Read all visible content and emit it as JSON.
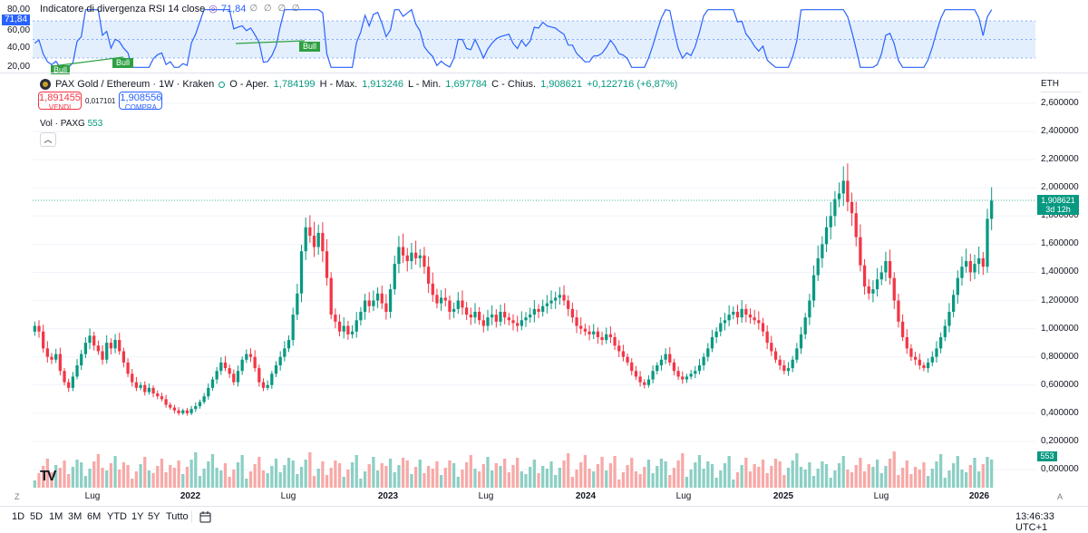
{
  "rsi": {
    "title": "Indicatore di divergenza RSI 14 close",
    "value": "71,84",
    "dots": "∅ ∅ ∅ ∅",
    "axis": [
      "80,00",
      "60,00",
      "40,00",
      "20,00"
    ],
    "tag": "71,84",
    "bull_labels": [
      "Bull",
      "Bull",
      "Bull"
    ],
    "line_color": "#2962ff"
  },
  "legend": {
    "symbol": "PAX Gold / Ethereum · 1W · Kraken",
    "o_label": "O - Aper.",
    "o_val": "1,784199",
    "h_label": "H - Max.",
    "h_val": "1,913246",
    "l_label": "L - Min.",
    "l_val": "1,697784",
    "c_label": "C - Chius.",
    "c_val": "1,908621",
    "change": "+0,122716 (+6,87%)"
  },
  "trade": {
    "sell_price": "1,891455",
    "sell_label": "VENDI",
    "spread": "0,017101",
    "buy_price": "1,908556",
    "buy_label": "COMPRA"
  },
  "volume": {
    "label": "Vol · PAXG",
    "value": "553",
    "tag": "553"
  },
  "collapse_icon": "chevron-up-icon",
  "currency": "ETH",
  "price_axis": [
    "2,600000",
    "2,400000",
    "2,200000",
    "2,000000",
    "1,800000",
    "1,600000",
    "1,400000",
    "1,200000",
    "1,000000",
    "0,800000",
    "0,600000",
    "0,400000",
    "0,200000",
    "0,000000"
  ],
  "price_tag": {
    "price": "1,908621",
    "countdown": "3d 12h"
  },
  "time_axis": [
    {
      "label": "Lug",
      "bold": false
    },
    {
      "label": "2022",
      "bold": true
    },
    {
      "label": "Lug",
      "bold": false
    },
    {
      "label": "2023",
      "bold": true
    },
    {
      "label": "Lug",
      "bold": false
    },
    {
      "label": "2024",
      "bold": true
    },
    {
      "label": "Lug",
      "bold": false
    },
    {
      "label": "2025",
      "bold": true
    },
    {
      "label": "Lug",
      "bold": false
    },
    {
      "label": "2026",
      "bold": true
    }
  ],
  "axis_buttons": {
    "zoom": "Z",
    "auto": "A"
  },
  "timeframes": [
    "1D",
    "5D",
    "1M",
    "3M",
    "6M",
    "YTD",
    "1Y",
    "5Y",
    "Tutto"
  ],
  "clock": "13:46:33 UTC+1",
  "logo": "TV",
  "colors": {
    "up": "#089981",
    "down": "#f23645",
    "rsi": "#2962ff",
    "band": "#e3effd"
  },
  "chart_data": {
    "type": "candlestick",
    "ylim": [
      0,
      2.6
    ],
    "last_close": 1.908621,
    "closes": [
      1.02,
      0.98,
      0.86,
      0.8,
      0.78,
      0.82,
      0.7,
      0.62,
      0.58,
      0.66,
      0.74,
      0.82,
      0.9,
      0.95,
      0.88,
      0.84,
      0.78,
      0.9,
      0.86,
      0.92,
      0.84,
      0.76,
      0.68,
      0.62,
      0.58,
      0.6,
      0.55,
      0.58,
      0.54,
      0.52,
      0.5,
      0.46,
      0.44,
      0.42,
      0.4,
      0.42,
      0.4,
      0.43,
      0.45,
      0.48,
      0.52,
      0.58,
      0.64,
      0.7,
      0.76,
      0.72,
      0.68,
      0.62,
      0.7,
      0.78,
      0.82,
      0.8,
      0.72,
      0.62,
      0.58,
      0.6,
      0.68,
      0.74,
      0.8,
      0.86,
      0.92,
      1.1,
      1.25,
      1.55,
      1.72,
      1.66,
      1.58,
      1.68,
      1.55,
      1.36,
      1.1,
      1.05,
      0.98,
      1.02,
      0.96,
      0.98,
      1.06,
      1.12,
      1.2,
      1.16,
      1.2,
      1.25,
      1.18,
      1.12,
      1.28,
      1.46,
      1.58,
      1.52,
      1.48,
      1.54,
      1.5,
      1.52,
      1.44,
      1.32,
      1.24,
      1.18,
      1.22,
      1.2,
      1.12,
      1.14,
      1.2,
      1.15,
      1.1,
      1.08,
      1.12,
      1.06,
      1.02,
      1.08,
      1.1,
      1.05,
      1.12,
      1.08,
      1.06,
      1.04,
      1.02,
      1.06,
      1.08,
      1.1,
      1.14,
      1.12,
      1.16,
      1.18,
      1.2,
      1.22,
      1.24,
      1.2,
      1.14,
      1.08,
      1.02,
      1.0,
      0.98,
      0.96,
      0.98,
      0.94,
      0.92,
      0.96,
      0.94,
      0.88,
      0.84,
      0.8,
      0.76,
      0.7,
      0.66,
      0.62,
      0.6,
      0.64,
      0.7,
      0.74,
      0.78,
      0.82,
      0.76,
      0.7,
      0.66,
      0.64,
      0.66,
      0.68,
      0.7,
      0.74,
      0.8,
      0.86,
      0.94,
      0.98,
      1.04,
      1.06,
      1.1,
      1.12,
      1.08,
      1.14,
      1.1,
      1.08,
      1.06,
      1.04,
      0.98,
      0.9,
      0.84,
      0.78,
      0.74,
      0.7,
      0.72,
      0.78,
      0.86,
      0.96,
      1.08,
      1.2,
      1.38,
      1.5,
      1.6,
      1.72,
      1.8,
      1.92,
      1.96,
      2.05,
      1.9,
      1.82,
      1.65,
      1.45,
      1.3,
      1.25,
      1.28,
      1.35,
      1.4,
      1.48,
      1.36,
      1.2,
      1.05,
      0.94,
      0.86,
      0.8,
      0.78,
      0.74,
      0.72,
      0.76,
      0.8,
      0.86,
      0.94,
      1.02,
      1.12,
      1.24,
      1.36,
      1.44,
      1.48,
      1.4,
      1.46,
      1.5,
      1.44,
      1.78,
      1.908621
    ]
  }
}
